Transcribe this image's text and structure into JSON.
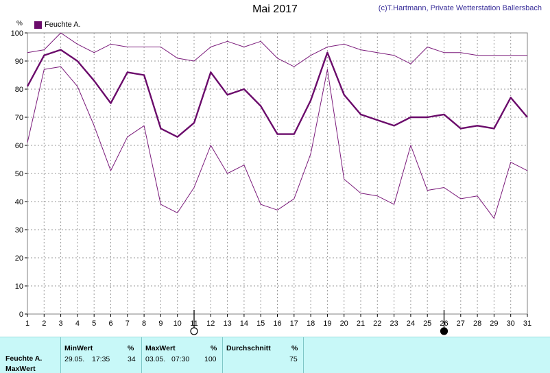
{
  "page": {
    "title": "Mai 2017",
    "copyright": "(c)T.Hartmann, Private Wetterstation Ballersbach"
  },
  "legend": {
    "label": "Feuchte A.",
    "color": "#6b0b6b"
  },
  "chart_data": {
    "type": "line",
    "ylabel": "%",
    "ylim": [
      0,
      100
    ],
    "yticks": [
      0,
      10,
      20,
      30,
      40,
      50,
      60,
      70,
      80,
      90,
      100
    ],
    "x": [
      1,
      2,
      3,
      4,
      5,
      6,
      7,
      8,
      9,
      10,
      11,
      12,
      13,
      14,
      15,
      16,
      17,
      18,
      19,
      20,
      21,
      22,
      23,
      24,
      25,
      26,
      27,
      28,
      29,
      30,
      31
    ],
    "grid": true,
    "series": [
      {
        "role": "max",
        "color": "#7a1a7a",
        "values": [
          93,
          94,
          100,
          96,
          93,
          96,
          95,
          95,
          95,
          91,
          90,
          95,
          97,
          95,
          97,
          91,
          88,
          92,
          95,
          96,
          94,
          93,
          92,
          89,
          95,
          93,
          93,
          92,
          92,
          92,
          92
        ]
      },
      {
        "role": "avg",
        "color": "#6b0b6b",
        "values": [
          81,
          92,
          94,
          90,
          83,
          75,
          86,
          85,
          66,
          63,
          68,
          86,
          78,
          80,
          74,
          64,
          64,
          76,
          93,
          78,
          71,
          69,
          67,
          70,
          70,
          71,
          66,
          67,
          66,
          77,
          70
        ]
      },
      {
        "role": "min",
        "color": "#7a1a7a",
        "values": [
          61,
          87,
          88,
          81,
          67,
          51,
          63,
          67,
          39,
          36,
          45,
          60,
          50,
          53,
          39,
          37,
          41,
          57,
          87,
          48,
          43,
          42,
          39,
          60,
          44,
          45,
          41,
          42,
          34,
          54,
          51
        ]
      }
    ],
    "moon_phases": [
      {
        "day": 11,
        "phase": "full"
      },
      {
        "day": 26,
        "phase": "new"
      }
    ]
  },
  "stats": {
    "row_label_1": "Feuchte A.",
    "row_label_2": "MaxWert",
    "min": {
      "header": "MinWert",
      "unit": "%",
      "date": "29.05.",
      "time": "17:35",
      "value": "34"
    },
    "max": {
      "header": "MaxWert",
      "unit": "%",
      "date": "03.05.",
      "time": "07:30",
      "value": "100"
    },
    "avg": {
      "header": "Durchschnitt",
      "unit": "%",
      "value": "75"
    }
  }
}
